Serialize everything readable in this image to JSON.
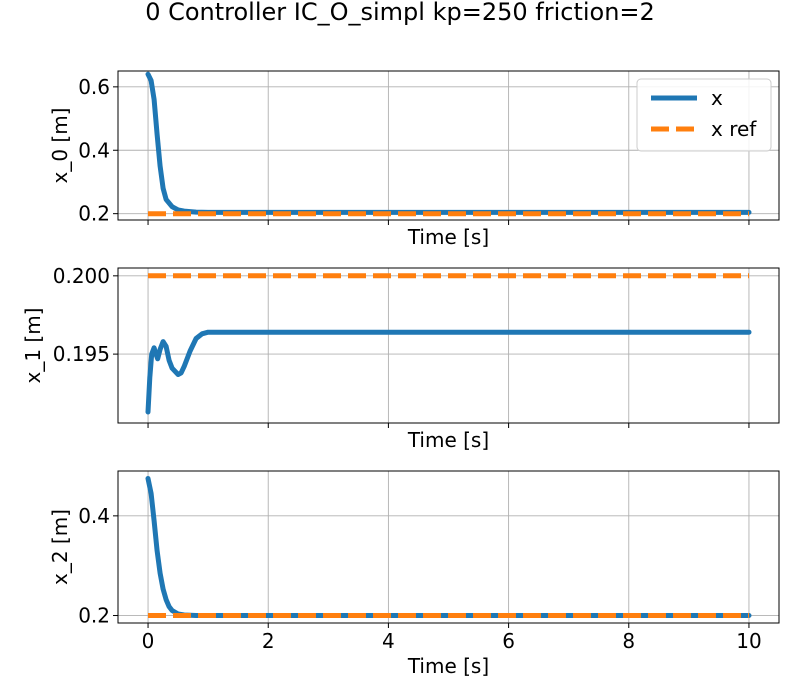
{
  "chart_data": {
    "type": "line",
    "title": "0 Controller IC_O_simpl kp=250 friction=2",
    "colors": {
      "x": "#1f77b4",
      "x_ref": "#ff7f0e",
      "grid": "#b0b0b0"
    },
    "legend": {
      "placement": "top-right",
      "entries": [
        "x",
        "x ref"
      ]
    },
    "xlim": [
      -0.5,
      10.5
    ],
    "xticks": [
      0,
      2,
      4,
      6,
      8,
      10
    ],
    "grid": true,
    "subplots": [
      {
        "ylabel": "x_0 [m]",
        "xlabel": "Time [s]",
        "ylim": [
          0.18,
          0.65
        ],
        "yticks": [
          0.2,
          0.4,
          0.6
        ],
        "ytick_labels": [
          "0.2",
          "0.4",
          "0.6"
        ],
        "xtick_labels_visible": false,
        "series": [
          {
            "name": "x",
            "style": "solid",
            "x": [
              0,
              0.05,
              0.1,
              0.15,
              0.2,
              0.25,
              0.3,
              0.4,
              0.5,
              0.6,
              0.8,
              1.0,
              1.5,
              2,
              4,
              6,
              8,
              10
            ],
            "y": [
              0.64,
              0.62,
              0.56,
              0.45,
              0.35,
              0.28,
              0.245,
              0.222,
              0.212,
              0.208,
              0.205,
              0.204,
              0.204,
              0.204,
              0.204,
              0.204,
              0.204,
              0.204
            ]
          },
          {
            "name": "x ref",
            "style": "dashed",
            "x": [
              0,
              10
            ],
            "y": [
              0.2,
              0.2
            ]
          }
        ]
      },
      {
        "ylabel": "x_1 [m]",
        "xlabel": "Time [s]",
        "ylim": [
          0.1906,
          0.2005
        ],
        "yticks": [
          0.195,
          0.2
        ],
        "ytick_labels": [
          "0.195",
          "0.200"
        ],
        "xtick_labels_visible": false,
        "series": [
          {
            "name": "x",
            "style": "solid",
            "x": [
              0,
              0.03,
              0.06,
              0.1,
              0.13,
              0.16,
              0.2,
              0.25,
              0.3,
              0.35,
              0.4,
              0.5,
              0.55,
              0.6,
              0.7,
              0.8,
              0.9,
              1.0,
              1.2,
              1.5,
              2,
              4,
              6,
              8,
              10
            ],
            "y": [
              0.1913,
              0.1935,
              0.195,
              0.1954,
              0.195,
              0.1947,
              0.1953,
              0.1958,
              0.1955,
              0.1946,
              0.1941,
              0.1937,
              0.1938,
              0.1942,
              0.1952,
              0.196,
              0.1963,
              0.1964,
              0.1964,
              0.1964,
              0.1964,
              0.1964,
              0.1964,
              0.1964,
              0.1964
            ]
          },
          {
            "name": "x ref",
            "style": "dashed",
            "x": [
              0,
              10
            ],
            "y": [
              0.2,
              0.2
            ]
          }
        ]
      },
      {
        "ylabel": "x_2 [m]",
        "xlabel": "Time [s]",
        "ylim": [
          0.185,
          0.49
        ],
        "yticks": [
          0.2,
          0.4
        ],
        "ytick_labels": [
          "0.2",
          "0.4"
        ],
        "xtick_labels_visible": true,
        "series": [
          {
            "name": "x",
            "style": "solid",
            "x": [
              0,
              0.05,
              0.1,
              0.15,
              0.2,
              0.25,
              0.3,
              0.35,
              0.4,
              0.5,
              0.6,
              0.8,
              1.0,
              2,
              4,
              6,
              8,
              10
            ],
            "y": [
              0.475,
              0.445,
              0.39,
              0.33,
              0.285,
              0.253,
              0.232,
              0.218,
              0.21,
              0.203,
              0.201,
              0.2,
              0.2,
              0.2,
              0.2,
              0.2,
              0.2,
              0.2
            ]
          },
          {
            "name": "x ref",
            "style": "dashed",
            "x": [
              0,
              10
            ],
            "y": [
              0.2,
              0.2
            ]
          }
        ]
      }
    ]
  }
}
